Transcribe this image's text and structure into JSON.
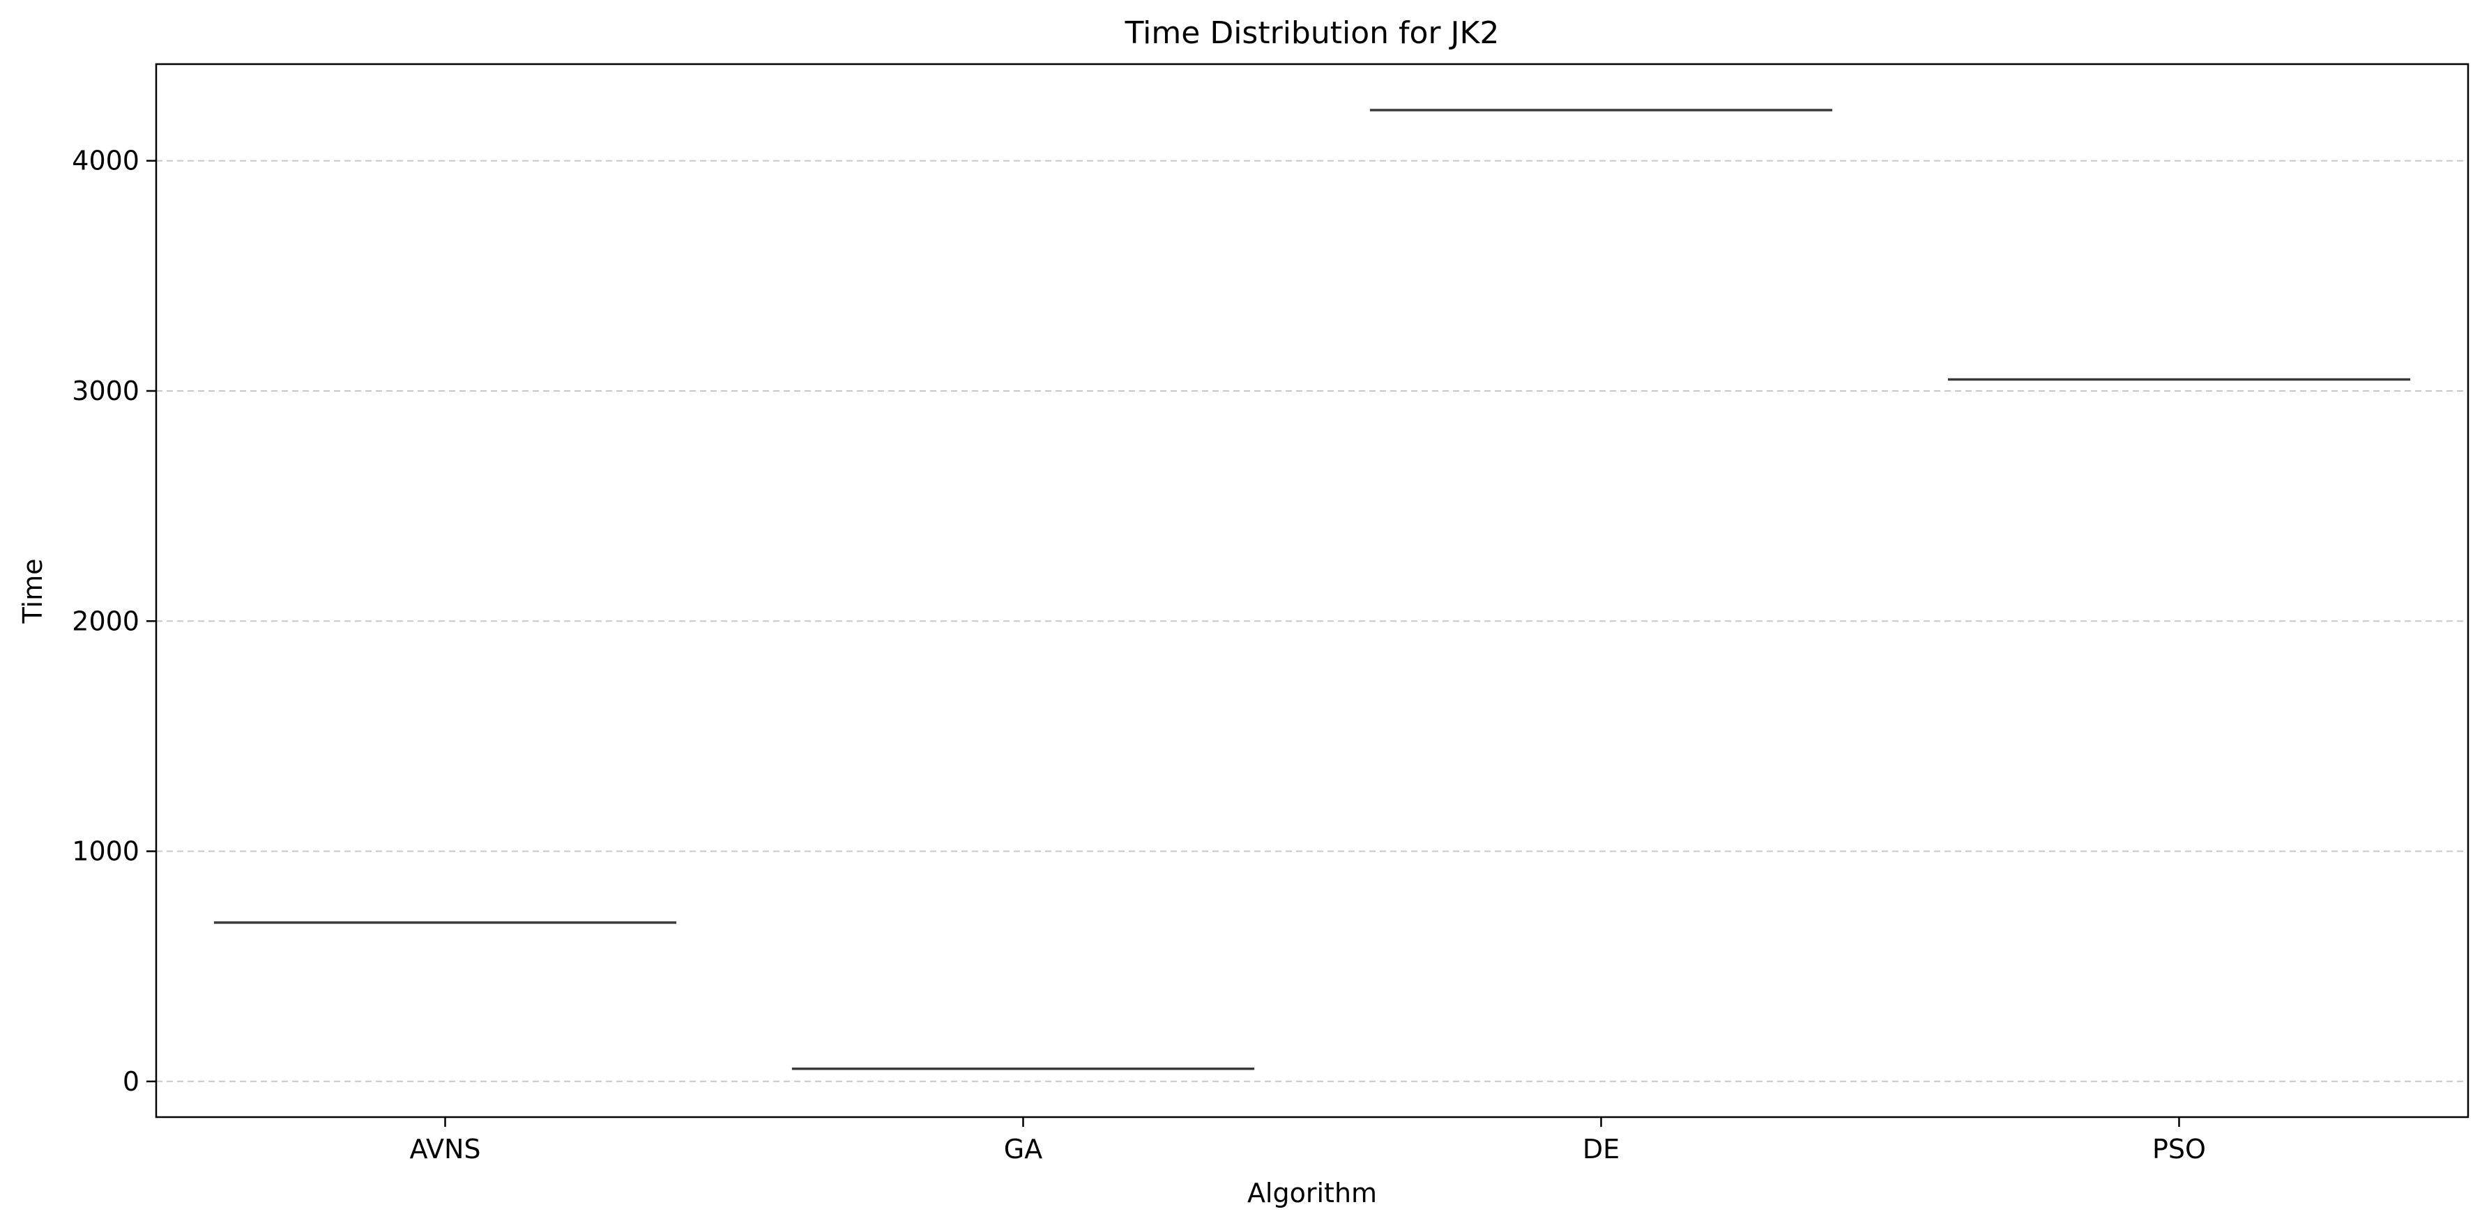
{
  "chart_data": {
    "type": "box",
    "title": "Time Distribution for JK2",
    "xlabel": "Algorithm",
    "ylabel": "Time",
    "categories": [
      "AVNS",
      "GA",
      "DE",
      "PSO"
    ],
    "values": [
      690,
      55,
      4220,
      3050
    ],
    "ylim": [
      -155,
      4420
    ],
    "yticks": [
      0,
      1000,
      2000,
      3000,
      4000
    ],
    "grid": "y-dashed",
    "colors": {
      "line": "#3a3a3a",
      "grid": "#c8c8c8",
      "axis": "#000000"
    }
  }
}
